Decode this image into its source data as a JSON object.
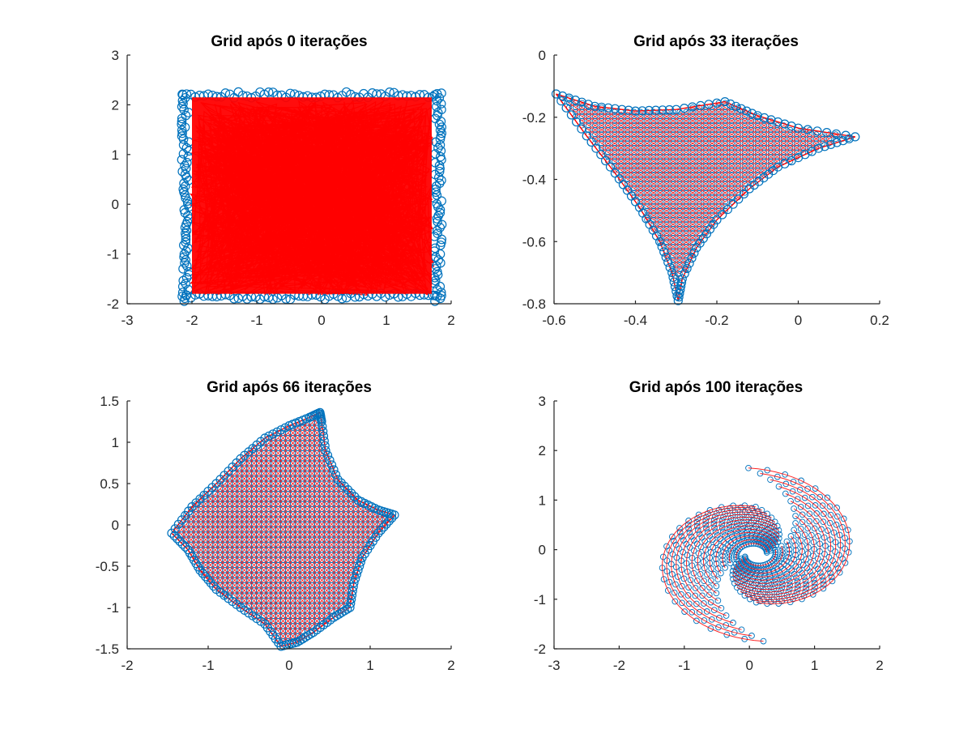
{
  "figure": {
    "background": "#ffffff"
  },
  "colors": {
    "marker": "#0072BD",
    "line": "#FF0000",
    "axis": "#262626"
  },
  "chart_data": [
    {
      "id": "p1",
      "type": "scatter",
      "title": "Grid após 0 iterações",
      "xlabel": "",
      "ylabel": "",
      "xlim": [
        -3,
        2
      ],
      "ylim": [
        -2,
        3
      ],
      "xticks": [
        -3,
        -2,
        -1,
        0,
        1,
        2
      ],
      "yticks": [
        -2,
        -1,
        0,
        1,
        2,
        3
      ],
      "grid": false,
      "series": [
        {
          "style": "line",
          "description_shape": "random-box",
          "points": [
            [
              -2.15,
              -1.95
            ],
            [
              1.85,
              -1.95
            ],
            [
              1.85,
              2.25
            ],
            [
              -2.15,
              2.25
            ]
          ]
        },
        {
          "style": "marker-o",
          "description_shape": "box-perimeter",
          "points": [
            [
              -2.15,
              -1.95
            ],
            [
              1.85,
              -1.95
            ],
            [
              1.85,
              2.25
            ],
            [
              -2.15,
              2.25
            ]
          ]
        }
      ]
    },
    {
      "id": "p2",
      "type": "scatter",
      "title": "Grid após 33 iterações",
      "xlabel": "",
      "ylabel": "",
      "xlim": [
        -0.6,
        0.2
      ],
      "ylim": [
        -0.8,
        0
      ],
      "xticks": [
        -0.6,
        -0.4,
        -0.2,
        0,
        0.2
      ],
      "yticks": [
        -0.8,
        -0.6,
        -0.4,
        -0.2,
        0
      ],
      "grid": false,
      "series": [
        {
          "style": "mesh",
          "boundary": [
            [
              -0.595,
              -0.125
            ],
            [
              -0.5,
              -0.165
            ],
            [
              -0.4,
              -0.18
            ],
            [
              -0.3,
              -0.175
            ],
            [
              -0.18,
              -0.15
            ],
            [
              -0.1,
              -0.195
            ],
            [
              0.0,
              -0.235
            ],
            [
              0.14,
              -0.263
            ],
            [
              0.05,
              -0.3
            ],
            [
              -0.05,
              -0.36
            ],
            [
              -0.12,
              -0.43
            ],
            [
              -0.2,
              -0.53
            ],
            [
              -0.25,
              -0.62
            ],
            [
              -0.285,
              -0.72
            ],
            [
              -0.295,
              -0.79
            ],
            [
              -0.31,
              -0.7
            ],
            [
              -0.34,
              -0.6
            ],
            [
              -0.39,
              -0.49
            ],
            [
              -0.45,
              -0.38
            ],
            [
              -0.52,
              -0.26
            ],
            [
              -0.595,
              -0.125
            ]
          ]
        }
      ]
    },
    {
      "id": "p3",
      "type": "scatter",
      "title": "Grid após 66 iterações",
      "xlabel": "",
      "ylabel": "",
      "xlim": [
        -2,
        2
      ],
      "ylim": [
        -1.5,
        1.5
      ],
      "xticks": [
        -2,
        -1,
        0,
        1,
        2
      ],
      "yticks": [
        -1.5,
        -1,
        -0.5,
        0,
        0.5,
        1,
        1.5
      ],
      "grid": false,
      "series": [
        {
          "style": "mesh",
          "boundary": [
            [
              -1.45,
              -0.1
            ],
            [
              -1.2,
              0.22
            ],
            [
              -0.9,
              0.5
            ],
            [
              -0.6,
              0.8
            ],
            [
              -0.3,
              1.05
            ],
            [
              0.0,
              1.2
            ],
            [
              0.25,
              1.3
            ],
            [
              0.38,
              1.36
            ],
            [
              0.4,
              1.25
            ],
            [
              0.45,
              0.9
            ],
            [
              0.6,
              0.55
            ],
            [
              0.85,
              0.3
            ],
            [
              1.1,
              0.18
            ],
            [
              1.3,
              0.12
            ],
            [
              1.1,
              -0.1
            ],
            [
              0.9,
              -0.4
            ],
            [
              0.8,
              -0.7
            ],
            [
              0.75,
              -1.0
            ],
            [
              0.55,
              -1.12
            ],
            [
              0.3,
              -1.3
            ],
            [
              0.1,
              -1.42
            ],
            [
              -0.1,
              -1.47
            ],
            [
              -0.3,
              -1.2
            ],
            [
              -0.6,
              -1.0
            ],
            [
              -0.9,
              -0.78
            ],
            [
              -1.1,
              -0.55
            ],
            [
              -1.25,
              -0.3
            ],
            [
              -1.45,
              -0.1
            ]
          ]
        }
      ]
    },
    {
      "id": "p4",
      "type": "scatter",
      "title": "Grid após 100 iterações",
      "xlabel": "",
      "ylabel": "",
      "xlim": [
        -3,
        2
      ],
      "ylim": [
        -2,
        3
      ],
      "xticks": [
        -3,
        -2,
        -1,
        0,
        1,
        2
      ],
      "yticks": [
        -2,
        -1,
        0,
        1,
        2,
        3
      ],
      "grid": false,
      "series": [
        {
          "style": "spiral-mesh",
          "center": [
            0.1,
            -0.1
          ],
          "outer": 1.75,
          "inner": 0.3
        }
      ]
    }
  ]
}
